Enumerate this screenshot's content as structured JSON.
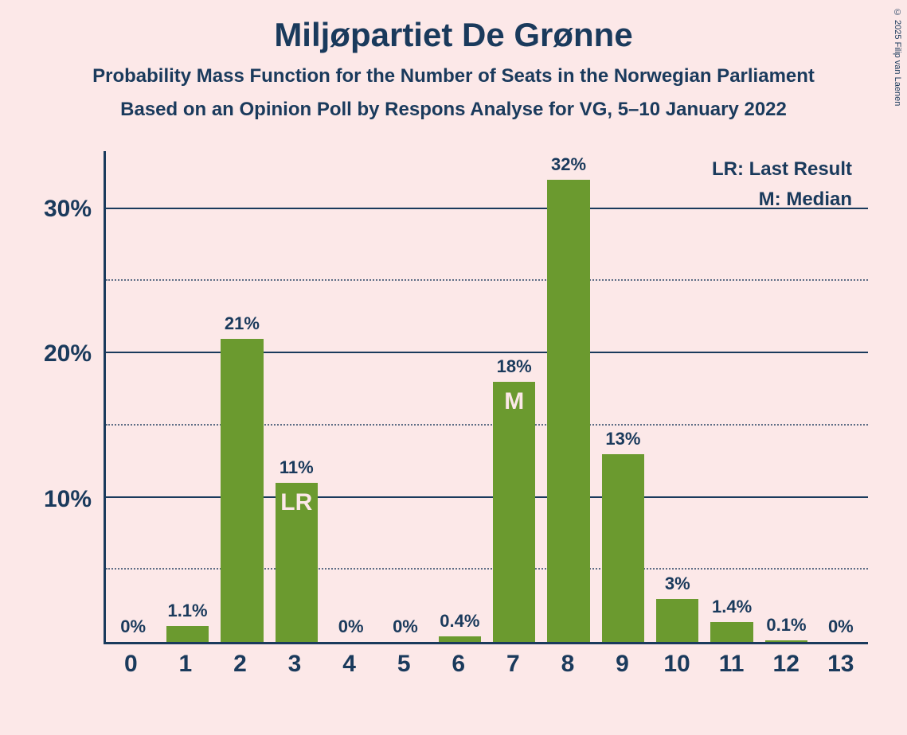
{
  "title": "Miljøpartiet De Grønne",
  "subtitle1": "Probability Mass Function for the Number of Seats in the Norwegian Parliament",
  "subtitle2": "Based on an Opinion Poll by Respons Analyse for VG, 5–10 January 2022",
  "copyright": "© 2025 Filip van Laenen",
  "legend": {
    "lr": "LR: Last Result",
    "m": "M: Median"
  },
  "chart": {
    "type": "bar",
    "categories": [
      "0",
      "1",
      "2",
      "3",
      "4",
      "5",
      "6",
      "7",
      "8",
      "9",
      "10",
      "11",
      "12",
      "13"
    ],
    "values": [
      0,
      1.1,
      21,
      11,
      0,
      0,
      0.4,
      18,
      32,
      13,
      3,
      1.4,
      0.1,
      0
    ],
    "value_labels": [
      "0%",
      "1.1%",
      "21%",
      "11%",
      "0%",
      "0%",
      "0.4%",
      "18%",
      "32%",
      "13%",
      "3%",
      "1.4%",
      "0.1%",
      "0%"
    ],
    "markers": {
      "3": "LR",
      "7": "M"
    },
    "bar_color": "#6b9a2f",
    "marker_text_color": "#fce8e8",
    "ylim": [
      0,
      34
    ],
    "y_major_ticks": [
      10,
      20,
      30
    ],
    "y_major_labels": [
      "10%",
      "20%",
      "30%"
    ],
    "y_minor_ticks": [
      5,
      15,
      25
    ],
    "axis_color": "#1a3a5c",
    "grid_major_color": "#1a3a5c",
    "grid_minor_color": "#1a3a5c",
    "background_color": "#fce8e8",
    "title_fontsize": 42,
    "subtitle_fontsize": 24,
    "tick_fontsize": 30,
    "bar_label_fontsize": 22,
    "legend_fontsize": 24,
    "bar_width_ratio": 0.78
  }
}
